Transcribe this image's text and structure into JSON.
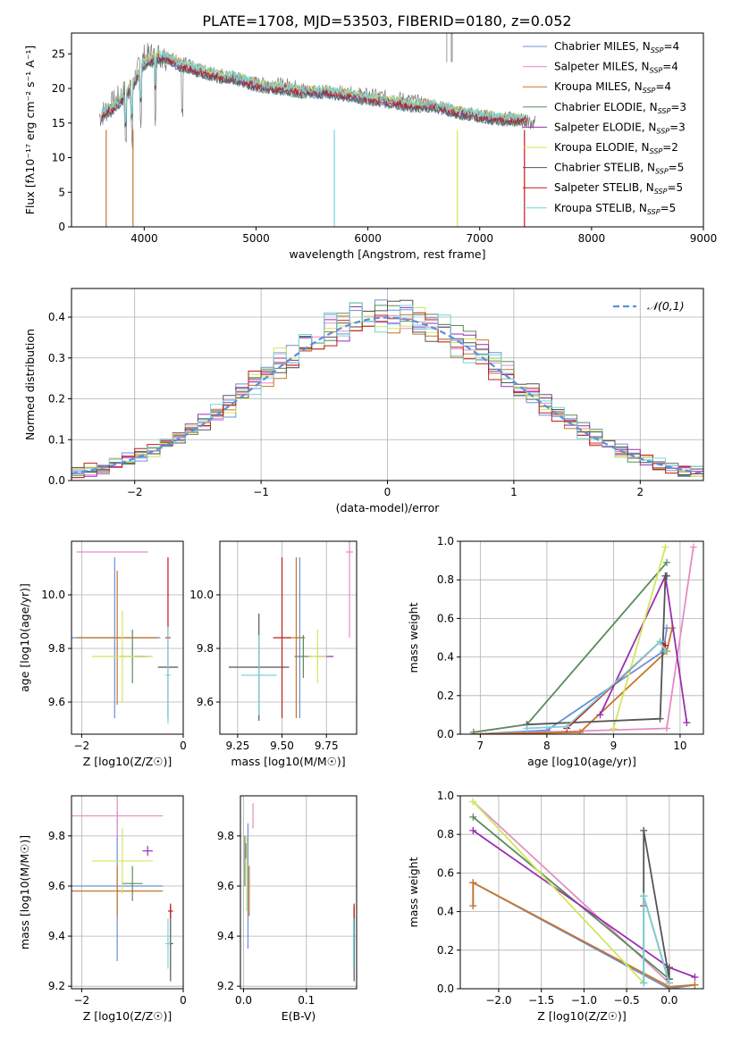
{
  "figure_title": "PLATE=1708, MJD=53503, FIBERID=0180, z=0.052",
  "colors": {
    "Chabrier MILES": "#6d8fd6",
    "Salpeter MILES": "#e58cc3",
    "Kroupa MILES": "#c8752a",
    "Chabrier ELODIE": "#5c8a5c",
    "Salpeter ELODIE": "#9a2fb1",
    "Kroupa ELODIE": "#cfe85a",
    "Chabrier STELIB": "#555555",
    "Salpeter STELIB": "#c01b1b",
    "Kroupa STELIB": "#79d3d8",
    "gaussian": "#5b8fdc",
    "grid": "#b0b0b0"
  },
  "chart_data": [
    {
      "id": "spectrum",
      "type": "line",
      "title": "PLATE=1708, MJD=53503, FIBERID=0180, z=0.052",
      "xlabel": "wavelength [Angstrom, rest frame]",
      "ylabel": "Flux [fλ10⁻¹⁷ erg cm⁻² s⁻¹ A⁻¹]",
      "xlim": [
        3350,
        9000
      ],
      "ylim": [
        0,
        28
      ],
      "xticks": [
        4000,
        5000,
        6000,
        7000,
        8000,
        9000
      ],
      "yticks": [
        0,
        5,
        10,
        15,
        20,
        25
      ],
      "grid": false,
      "legend_position": "upper-right",
      "legend": [
        "Chabrier MILES, NSSP=4",
        "Salpeter MILES, NSSP=4",
        "Kroupa MILES, NSSP=4",
        "Chabrier ELODIE, NSSP=3",
        "Salpeter ELODIE, NSSP=3",
        "Kroupa ELODIE, NSSP=2",
        "Chabrier STELIB, NSSP=5",
        "Salpeter STELIB, NSSP=5",
        "Kroupa STELIB, NSSP=5"
      ],
      "data_envelope": {
        "x": [
          3600,
          3700,
          3800,
          3900,
          4000,
          4100,
          4300,
          4500,
          4700,
          4900,
          5100,
          5300,
          5500,
          5700,
          6000,
          6300,
          6600,
          6800,
          7000,
          7300,
          7500
        ],
        "y": [
          16,
          17.5,
          19,
          21,
          24.5,
          25,
          24,
          22.5,
          22,
          21,
          20.5,
          20.5,
          19.5,
          19.5,
          19,
          18.5,
          17.5,
          16.5,
          16,
          15.5,
          15
        ]
      },
      "model_spectrum": {
        "x": [
          3600,
          3650,
          3700,
          3750,
          3800,
          3850,
          3900,
          3950,
          4000,
          4050,
          4100,
          4200,
          4300,
          4400,
          4500,
          4600,
          4700,
          4800,
          4900,
          5000,
          5200,
          5400,
          5600,
          5800,
          6000,
          6200,
          6400,
          6600,
          6800,
          7000,
          7200,
          7400
        ],
        "y": [
          15.5,
          16.5,
          17,
          17.5,
          18.5,
          19.5,
          20.5,
          22,
          23.5,
          24,
          24.5,
          24.5,
          23.5,
          23,
          22.5,
          22,
          21.5,
          21.5,
          21,
          20.5,
          20,
          19.5,
          19.5,
          19,
          18.5,
          18,
          17.5,
          17.5,
          16.5,
          16,
          15.5,
          15.5
        ]
      }
    },
    {
      "id": "residuals",
      "type": "line",
      "xlabel": "(data-model)/error",
      "ylabel": "Normed distribution",
      "xlim": [
        -2.5,
        2.5
      ],
      "ylim": [
        0,
        0.47
      ],
      "xticks": [
        -2,
        -1,
        0,
        1,
        2
      ],
      "yticks": [
        0.0,
        0.1,
        0.2,
        0.3,
        0.4
      ],
      "grid": true,
      "legend_position": "upper-right",
      "legend": [
        "𝒩(0,1)"
      ],
      "series_style": "step histograms, one per model, bin width 0.1"
    },
    {
      "id": "age_vs_Z",
      "type": "scatter",
      "xlabel": "Z [log10(Z/Z☉)]",
      "ylabel": "age  [log10(age/yr)]",
      "xlim": [
        -2.2,
        0.0
      ],
      "ylim": [
        9.48,
        10.2
      ],
      "xticks": [
        -2,
        0
      ],
      "yticks": [
        9.6,
        9.8,
        10.0
      ],
      "grid": true,
      "points": [
        {
          "name": "Chabrier MILES",
          "x": -1.35,
          "y": 9.84,
          "xerr": 0.9,
          "yerr": 0.3
        },
        {
          "name": "Salpeter MILES",
          "x": -1.4,
          "y": 10.16,
          "xerr": 0.7,
          "yerr": 0.0
        },
        {
          "name": "Kroupa MILES",
          "x": -1.3,
          "y": 9.84,
          "xerr": 0.8,
          "yerr": 0.25
        },
        {
          "name": "Chabrier ELODIE",
          "x": -1.0,
          "y": 9.77,
          "xerr": 0.25,
          "yerr": 0.1
        },
        {
          "name": "Salpeter ELODIE",
          "x": -0.8,
          "y": 9.77,
          "xerr": 0.15,
          "yerr": 0.0
        },
        {
          "name": "Kroupa ELODIE",
          "x": -1.2,
          "y": 9.77,
          "xerr": 0.6,
          "yerr": 0.17
        },
        {
          "name": "Chabrier STELIB",
          "x": -0.3,
          "y": 9.73,
          "xerr": 0.2,
          "yerr": 0.0
        },
        {
          "name": "Salpeter STELIB",
          "x": -0.3,
          "y": 9.84,
          "xerr": 0.05,
          "yerr": 0.3
        },
        {
          "name": "Kroupa STELIB",
          "x": -0.3,
          "y": 9.7,
          "xerr": 0.05,
          "yerr": 0.18
        }
      ]
    },
    {
      "id": "age_vs_mass",
      "type": "scatter",
      "xlabel": "mass [log10(M/M☉)]",
      "ylabel": "",
      "xlim": [
        9.15,
        9.92
      ],
      "ylim": [
        9.48,
        10.2
      ],
      "xticks": [
        9.25,
        9.5,
        9.75
      ],
      "yticks": [
        9.6,
        9.8,
        10.0
      ],
      "grid": true,
      "points": [
        {
          "name": "Chabrier MILES",
          "x": 9.6,
          "y": 9.84,
          "xerr": 0.02,
          "yerr": 0.3
        },
        {
          "name": "Salpeter MILES",
          "x": 9.88,
          "y": 10.16,
          "xerr": 0.02,
          "yerr": 0.32
        },
        {
          "name": "Kroupa MILES",
          "x": 9.58,
          "y": 9.84,
          "xerr": 0.05,
          "yerr": 0.3
        },
        {
          "name": "Chabrier ELODIE",
          "x": 9.62,
          "y": 9.77,
          "xerr": 0.05,
          "yerr": 0.08
        },
        {
          "name": "Salpeter ELODIE",
          "x": 9.74,
          "y": 9.77,
          "xerr": 0.05,
          "yerr": 0.0
        },
        {
          "name": "Kroupa ELODIE",
          "x": 9.7,
          "y": 9.77,
          "xerr": 0.05,
          "yerr": 0.1
        },
        {
          "name": "Chabrier STELIB",
          "x": 9.37,
          "y": 9.73,
          "xerr": 0.17,
          "yerr": 0.2
        },
        {
          "name": "Salpeter STELIB",
          "x": 9.5,
          "y": 9.84,
          "xerr": 0.05,
          "yerr": 0.3
        },
        {
          "name": "Kroupa STELIB",
          "x": 9.37,
          "y": 9.7,
          "xerr": 0.1,
          "yerr": 0.15
        }
      ]
    },
    {
      "id": "weight_vs_age",
      "type": "line",
      "xlabel": "age  [log10(age/yr)]",
      "ylabel": "mass weight",
      "xlim": [
        6.7,
        10.35
      ],
      "ylim": [
        0,
        1.0
      ],
      "xticks": [
        7,
        8,
        9,
        10
      ],
      "yticks": [
        0.0,
        0.2,
        0.4,
        0.6,
        0.8,
        1.0
      ],
      "grid": true,
      "series": [
        {
          "name": "Chabrier MILES",
          "x": [
            6.9,
            8.0,
            9.75,
            9.8
          ],
          "y": [
            0.0,
            0.02,
            0.43,
            0.55
          ]
        },
        {
          "name": "Salpeter MILES",
          "x": [
            6.9,
            9.8,
            10.2
          ],
          "y": [
            0.0,
            0.03,
            0.97
          ]
        },
        {
          "name": "Kroupa MILES",
          "x": [
            6.9,
            8.5,
            9.8,
            9.88
          ],
          "y": [
            0.0,
            0.01,
            0.43,
            0.55
          ]
        },
        {
          "name": "Chabrier ELODIE",
          "x": [
            6.9,
            7.7,
            9.8
          ],
          "y": [
            0.01,
            0.05,
            0.89
          ]
        },
        {
          "name": "Salpeter ELODIE",
          "x": [
            8.8,
            9.78,
            10.1
          ],
          "y": [
            0.1,
            0.82,
            0.06
          ]
        },
        {
          "name": "Kroupa ELODIE",
          "x": [
            9.0,
            9.78
          ],
          "y": [
            0.03,
            0.97
          ]
        },
        {
          "name": "Chabrier STELIB",
          "x": [
            7.7,
            9.7,
            9.78,
            9.8
          ],
          "y": [
            0.05,
            0.08,
            0.82,
            0.82
          ]
        },
        {
          "name": "Salpeter STELIB",
          "x": [
            8.3,
            9.7,
            9.78
          ],
          "y": [
            0.03,
            0.48,
            0.46
          ]
        },
        {
          "name": "Kroupa STELIB",
          "x": [
            7.7,
            8.3,
            9.7,
            9.78
          ],
          "y": [
            0.03,
            0.04,
            0.48,
            0.43
          ]
        }
      ]
    },
    {
      "id": "mass_vs_Z",
      "type": "scatter",
      "xlabel": "Z [log10(Z/Z☉)]",
      "ylabel": "mass [log10(M/M☉)]",
      "xlim": [
        -2.2,
        0.0
      ],
      "ylim": [
        9.19,
        9.96
      ],
      "xticks": [
        -2,
        0
      ],
      "yticks": [
        9.2,
        9.4,
        9.6,
        9.8
      ],
      "grid": true,
      "points": [
        {
          "name": "Chabrier MILES",
          "x": -1.3,
          "y": 9.6,
          "xerr": 0.9,
          "yerr": 0.3
        },
        {
          "name": "Salpeter MILES",
          "x": -1.3,
          "y": 9.88,
          "xerr": 0.9,
          "yerr": 0.08
        },
        {
          "name": "Kroupa MILES",
          "x": -1.3,
          "y": 9.58,
          "xerr": 0.9,
          "yerr": 0.1
        },
        {
          "name": "Chabrier ELODIE",
          "x": -1.0,
          "y": 9.61,
          "xerr": 0.2,
          "yerr": 0.07
        },
        {
          "name": "Salpeter ELODIE",
          "x": -0.7,
          "y": 9.74,
          "xerr": 0.1,
          "yerr": 0.02
        },
        {
          "name": "Kroupa ELODIE",
          "x": -1.2,
          "y": 9.7,
          "xerr": 0.6,
          "yerr": 0.13
        },
        {
          "name": "Chabrier STELIB",
          "x": -0.25,
          "y": 9.37,
          "xerr": 0.05,
          "yerr": 0.15
        },
        {
          "name": "Salpeter STELIB",
          "x": -0.25,
          "y": 9.5,
          "xerr": 0.05,
          "yerr": 0.03
        },
        {
          "name": "Kroupa STELIB",
          "x": -0.3,
          "y": 9.37,
          "xerr": 0.05,
          "yerr": 0.1
        }
      ]
    },
    {
      "id": "mass_vs_ebv",
      "type": "scatter",
      "xlabel": "E(B-V)",
      "ylabel": "",
      "xlim": [
        -0.005,
        0.18
      ],
      "ylim": [
        9.19,
        9.96
      ],
      "xticks": [
        0.0,
        0.1
      ],
      "yticks": [
        9.2,
        9.4,
        9.6,
        9.8
      ],
      "grid": true,
      "points": [
        {
          "name": "Chabrier MILES",
          "x": 0.007,
          "y": 9.6,
          "xerr": 0.0,
          "yerr": 0.25
        },
        {
          "name": "Salpeter MILES",
          "x": 0.015,
          "y": 9.88,
          "xerr": 0.0,
          "yerr": 0.05
        },
        {
          "name": "Kroupa MILES",
          "x": 0.009,
          "y": 9.58,
          "xerr": 0.0,
          "yerr": 0.1
        },
        {
          "name": "Chabrier ELODIE",
          "x": 0.002,
          "y": 9.7,
          "xerr": 0.0,
          "yerr": 0.1
        },
        {
          "name": "Salpeter ELODIE",
          "x": 0.004,
          "y": 9.74,
          "xerr": 0.0,
          "yerr": 0.03
        },
        {
          "name": "Kroupa ELODIE",
          "x": 0.005,
          "y": 9.65,
          "xerr": 0.0,
          "yerr": 0.15
        },
        {
          "name": "Chabrier STELIB",
          "x": 0.176,
          "y": 9.37,
          "xerr": 0.0,
          "yerr": 0.15
        },
        {
          "name": "Salpeter STELIB",
          "x": 0.176,
          "y": 9.5,
          "xerr": 0.0,
          "yerr": 0.03
        },
        {
          "name": "Kroupa STELIB",
          "x": 0.175,
          "y": 9.37,
          "xerr": 0.0,
          "yerr": 0.1
        }
      ]
    },
    {
      "id": "weight_vs_Z",
      "type": "line",
      "xlabel": "Z [log10(Z/Z☉)]",
      "ylabel": "mass weight",
      "xlim": [
        -2.45,
        0.4
      ],
      "ylim": [
        0,
        1.0
      ],
      "xticks": [
        -2.0,
        -1.5,
        -1.0,
        -0.5,
        0.0
      ],
      "yticks": [
        0.0,
        0.2,
        0.4,
        0.6,
        0.8,
        1.0
      ],
      "grid": true,
      "series": [
        {
          "name": "Chabrier MILES",
          "x": [
            -2.3,
            -2.3,
            0.0,
            0.3
          ],
          "y": [
            0.43,
            0.55,
            0.0,
            0.02
          ]
        },
        {
          "name": "Salpeter MILES",
          "x": [
            -2.3,
            0.0
          ],
          "y": [
            0.97,
            0.03
          ]
        },
        {
          "name": "Kroupa MILES",
          "x": [
            -2.3,
            -2.3,
            0.0,
            0.3
          ],
          "y": [
            0.43,
            0.55,
            0.01,
            0.02
          ]
        },
        {
          "name": "Chabrier ELODIE",
          "x": [
            -2.3,
            0.0
          ],
          "y": [
            0.89,
            0.05
          ]
        },
        {
          "name": "Salpeter ELODIE",
          "x": [
            -2.3,
            0.0,
            0.3
          ],
          "y": [
            0.82,
            0.11,
            0.06
          ]
        },
        {
          "name": "Kroupa ELODIE",
          "x": [
            -2.3,
            -0.3
          ],
          "y": [
            0.97,
            0.03
          ]
        },
        {
          "name": "Chabrier STELIB",
          "x": [
            -0.3,
            -0.3,
            0.0,
            0.0
          ],
          "y": [
            0.03,
            0.82,
            0.05,
            0.11
          ]
        },
        {
          "name": "Salpeter STELIB",
          "x": [
            -0.3,
            -0.3,
            0.0
          ],
          "y": [
            0.43,
            0.48,
            0.03
          ]
        },
        {
          "name": "Kroupa STELIB",
          "x": [
            -0.3,
            -0.3,
            0.0
          ],
          "y": [
            0.03,
            0.48,
            0.03
          ]
        }
      ]
    }
  ]
}
